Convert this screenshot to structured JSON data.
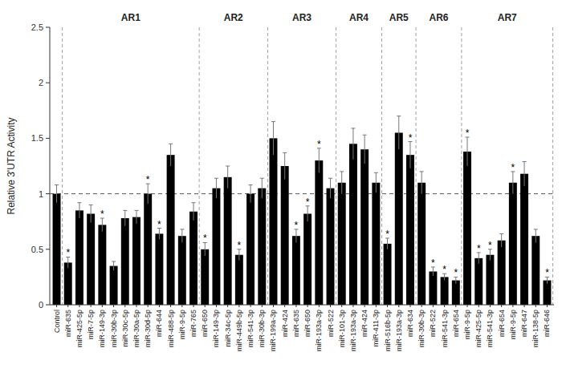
{
  "chart_data": {
    "type": "bar",
    "y_label": "Relative 3'UTR Activity",
    "categories": [
      "Control",
      "miR-635",
      "miR-425-5p",
      "miR-7-5p",
      "miR-149-3p",
      "miR-30b-3p",
      "miR-30c-5p",
      "miR-30a-5p",
      "miR-30d-5p",
      "miR-644",
      "miR-488-5p",
      "miR-9-5p",
      "miR-765",
      "miR-650",
      "miR-149-3p",
      "miR-34c-5p",
      "miR-449b-5p",
      "miR-541-3p",
      "miR-30b-3p",
      "miR-199a-3p",
      "miR-424",
      "miR-635",
      "miR-650",
      "miR-193a-3p",
      "miR-522",
      "miR-101-3p",
      "miR-193a-3p",
      "miR-424",
      "miR-411-3p",
      "miR-516b-5p",
      "miR-193a-3p",
      "miR-634",
      "miR-30b-3p",
      "miR-522",
      "miR-541-3p",
      "miR-654",
      "miR-9-5p",
      "miR-425-5p",
      "miR-541-3p",
      "miR-654",
      "miR-9-5p",
      "miR-647",
      "miR-138-5p",
      "miR-646"
    ],
    "values": [
      1.0,
      0.38,
      0.85,
      0.82,
      0.72,
      0.35,
      0.78,
      0.79,
      1.0,
      0.64,
      1.35,
      0.62,
      0.84,
      0.5,
      1.05,
      1.15,
      0.45,
      1.0,
      1.05,
      1.5,
      1.25,
      0.62,
      0.82,
      1.3,
      1.05,
      1.1,
      1.45,
      1.4,
      1.1,
      0.55,
      1.55,
      1.35,
      1.1,
      0.3,
      0.25,
      0.22,
      1.38,
      0.42,
      0.45,
      0.58,
      1.1,
      1.18,
      0.62,
      0.22
    ],
    "errors": [
      0.08,
      0.05,
      0.07,
      0.08,
      0.06,
      0.04,
      0.07,
      0.06,
      0.09,
      0.05,
      0.1,
      0.06,
      0.08,
      0.06,
      0.09,
      0.1,
      0.05,
      0.08,
      0.09,
      0.15,
      0.12,
      0.06,
      0.07,
      0.11,
      0.09,
      0.1,
      0.14,
      0.13,
      0.09,
      0.05,
      0.15,
      0.12,
      0.1,
      0.04,
      0.03,
      0.03,
      0.13,
      0.05,
      0.05,
      0.06,
      0.1,
      0.11,
      0.06,
      0.03
    ],
    "significant": [
      false,
      true,
      false,
      false,
      true,
      false,
      false,
      false,
      true,
      true,
      false,
      false,
      false,
      true,
      false,
      false,
      true,
      false,
      false,
      false,
      false,
      true,
      true,
      true,
      false,
      false,
      false,
      false,
      false,
      true,
      false,
      true,
      false,
      true,
      true,
      true,
      true,
      true,
      true,
      false,
      true,
      false,
      false,
      true
    ],
    "significance_label": "*",
    "groups": [
      {
        "name": "AR1",
        "start": 1,
        "end": 12
      },
      {
        "name": "AR2",
        "start": 13,
        "end": 18
      },
      {
        "name": "AR3",
        "start": 19,
        "end": 24
      },
      {
        "name": "AR4",
        "start": 25,
        "end": 28
      },
      {
        "name": "AR5",
        "start": 29,
        "end": 31
      },
      {
        "name": "AR6",
        "start": 32,
        "end": 35
      },
      {
        "name": "AR7",
        "start": 36,
        "end": 43
      }
    ],
    "reference_line": 1,
    "color": "#000000",
    "ylim": [
      0,
      2.5
    ],
    "yticks": [
      0,
      0.5,
      1,
      1.5,
      2,
      2.5
    ],
    "grid": false
  }
}
